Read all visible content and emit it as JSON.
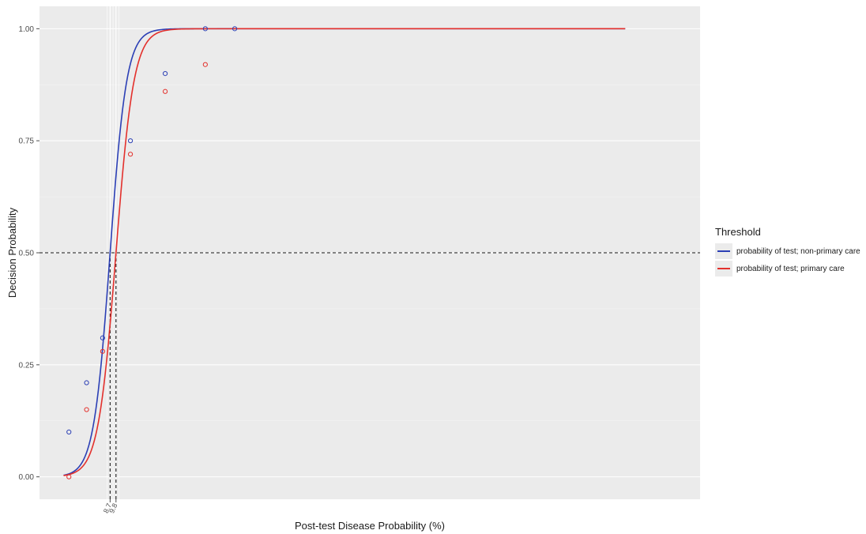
{
  "chart_data": {
    "type": "line",
    "title": "",
    "xlabel": "Post-test Disease Probability (%)",
    "ylabel": "Decision Probability",
    "xlim": [
      -4.5,
      119
    ],
    "ylim": [
      -0.05,
      1.05
    ],
    "yticks": [
      0.0,
      0.25,
      0.5,
      0.75,
      1.0
    ],
    "ytick_labels": [
      "0.00",
      "0.25",
      "0.50",
      "0.75",
      "1.00"
    ],
    "threshold_labels": [
      "8.7",
      "9.8"
    ],
    "grid": true,
    "legend_position": "right",
    "legend_title": "Threshold",
    "series": [
      {
        "name": "probability of test; non-primary care",
        "color": "#2b3fb5",
        "threshold": 8.7,
        "slope": 0.65,
        "curve_x_range": [
          0,
          105
        ],
        "points": [
          {
            "x": 1,
            "y": 0.1
          },
          {
            "x": 4.3,
            "y": 0.21
          },
          {
            "x": 7.3,
            "y": 0.31
          },
          {
            "x": 12.5,
            "y": 0.75
          },
          {
            "x": 19,
            "y": 0.9
          },
          {
            "x": 26.5,
            "y": 1.0
          },
          {
            "x": 32,
            "y": 1.0
          }
        ]
      },
      {
        "name": "probability of test; primary care",
        "color": "#e3302c",
        "threshold": 9.8,
        "slope": 0.6,
        "curve_x_range": [
          0,
          105
        ],
        "points": [
          {
            "x": 1,
            "y": 0.0
          },
          {
            "x": 4.3,
            "y": 0.15
          },
          {
            "x": 7.3,
            "y": 0.28
          },
          {
            "x": 12.5,
            "y": 0.72
          },
          {
            "x": 19,
            "y": 0.86
          },
          {
            "x": 26.5,
            "y": 0.92
          }
        ]
      }
    ]
  }
}
